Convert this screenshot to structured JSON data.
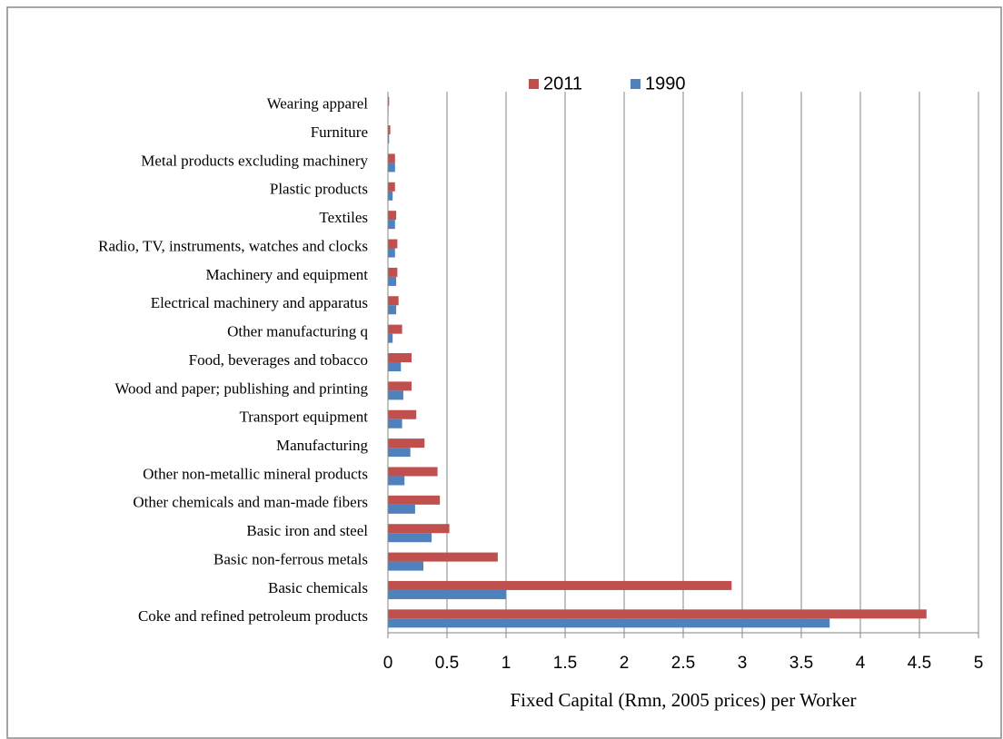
{
  "chart_data": {
    "type": "hbar",
    "x_label": "Fixed Capital (Rmn, 2005 prices) per Worker",
    "categories": [
      "Wearing apparel",
      "Furniture",
      "Metal products excluding machinery",
      "Plastic products",
      "Textiles",
      "Radio, TV, instruments, watches and clocks",
      "Machinery and equipment",
      "Electrical machinery and apparatus",
      "Other manufacturing q",
      "Food, beverages and tobacco",
      "Wood and paper; publishing and printing",
      "Transport equipment",
      "Manufacturing",
      "Other non-metallic mineral products",
      "Other chemicals and man-made fibers",
      "Basic iron and steel",
      "Basic non-ferrous metals",
      "Basic chemicals",
      "Coke and refined petroleum products"
    ],
    "series": [
      {
        "name": "2011",
        "color": "#c0504d",
        "values": [
          0.01,
          0.02,
          0.06,
          0.06,
          0.07,
          0.08,
          0.08,
          0.09,
          0.12,
          0.2,
          0.2,
          0.24,
          0.31,
          0.42,
          0.44,
          0.52,
          0.93,
          2.91,
          4.56
        ]
      },
      {
        "name": "1990",
        "color": "#4f81bd",
        "values": [
          0.005,
          0.01,
          0.06,
          0.04,
          0.06,
          0.06,
          0.07,
          0.07,
          0.04,
          0.11,
          0.13,
          0.12,
          0.19,
          0.14,
          0.23,
          0.37,
          0.3,
          1.0,
          3.74
        ]
      }
    ],
    "xlim": [
      0,
      5
    ],
    "xticks": [
      0,
      0.5,
      1,
      1.5,
      2,
      2.5,
      3,
      3.5,
      4,
      4.5,
      5
    ],
    "grid": true,
    "legend": "top"
  }
}
